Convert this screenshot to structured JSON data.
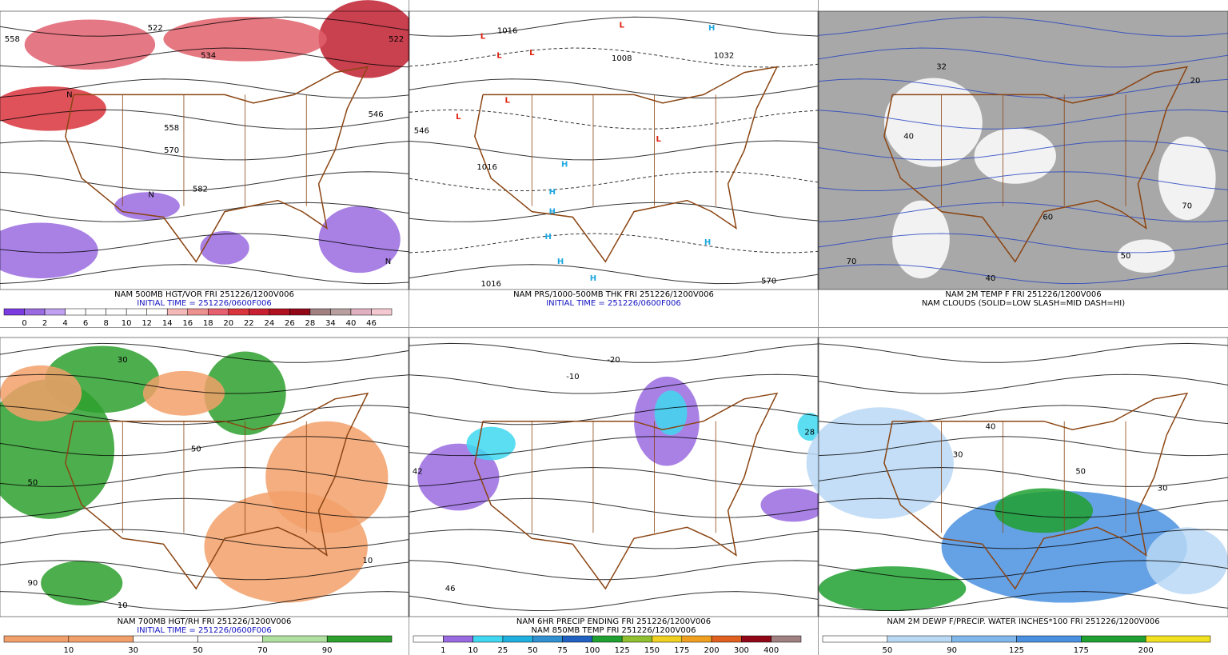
{
  "panels": [
    {
      "caption": [
        "NAM 500MB HGT/VOR FRI 251226/1200V006",
        "INITIAL TIME = 251226/0600F006"
      ],
      "colorbar": [
        "0",
        "2",
        "4",
        "6",
        "8",
        "10",
        "12",
        "14",
        "16",
        "18",
        "20",
        "22",
        "24",
        "26",
        "28",
        "34",
        "40",
        "46"
      ],
      "map_labels": [
        "558",
        "522",
        "534",
        "522",
        "546",
        "558",
        "570",
        "582",
        "N",
        "N",
        "N"
      ]
    },
    {
      "caption": [
        "NAM PRS/1000-500MB THK FRI 251226/1200V006",
        "INITIAL TIME = 251226/0600F006"
      ],
      "map_labels": [
        "L",
        "L",
        "L",
        "L",
        "L",
        "L",
        "L",
        "H",
        "H",
        "H",
        "H",
        "H",
        "H",
        "H",
        "H",
        "1016",
        "1008",
        "1032",
        "1016",
        "1016",
        "570",
        "546"
      ]
    },
    {
      "caption": [
        "NAM 2M TEMP F FRI 251226/1200V006",
        "NAM CLOUDS (SOLID=LOW SLASH=MID DASH=HI)"
      ],
      "map_labels": [
        "32",
        "40",
        "20",
        "50",
        "60",
        "70",
        "70",
        "40"
      ]
    },
    {
      "caption": [
        "NAM 700MB HGT/RH FRI 251226/1200V006",
        "INITIAL TIME = 251226/0600F006"
      ],
      "colorbar": [
        "10",
        "30",
        "50",
        "70",
        "90"
      ],
      "map_labels": [
        "50",
        "90",
        "10",
        "50",
        "30",
        "10"
      ]
    },
    {
      "caption": [
        "NAM 6HR PRECIP ENDING FRI 251226/1200V006",
        "NAM 850MB TEMP FRI 251226/1200V006"
      ],
      "colorbar": [
        "1",
        "10",
        "25",
        "50",
        "75",
        "100",
        "125",
        "150",
        "175",
        "200",
        "300",
        "400"
      ],
      "map_labels": [
        "-20",
        "-10",
        "42",
        "46",
        "28"
      ]
    },
    {
      "caption": [
        "NAM 2M DEWP F/PRECIP. WATER INCHES*100 FRI 251226/1200V006"
      ],
      "colorbar": [
        "50",
        "90",
        "125",
        "175",
        "200"
      ],
      "map_labels": [
        "30",
        "50",
        "30",
        "40"
      ]
    }
  ]
}
